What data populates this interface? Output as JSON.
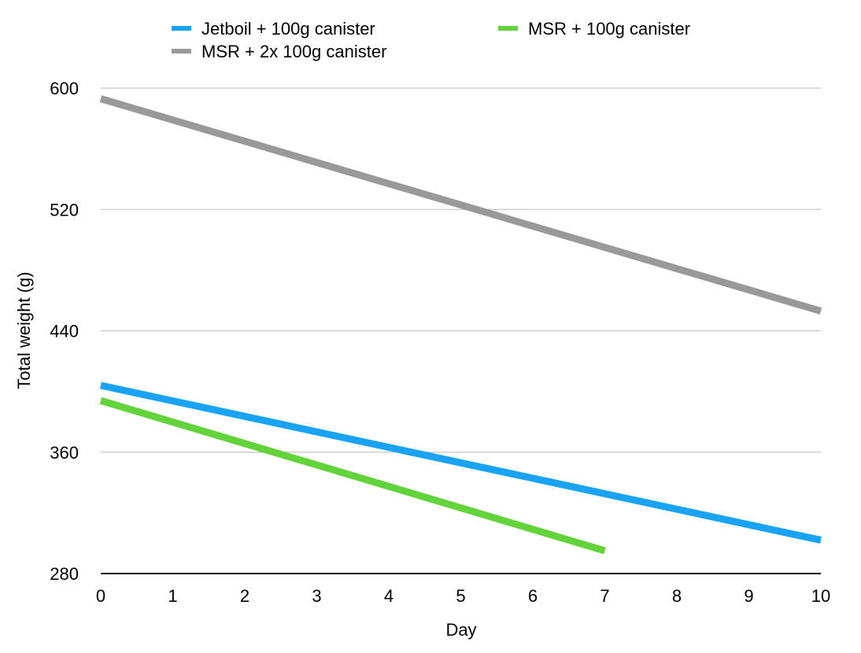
{
  "chart_data": {
    "type": "line",
    "title": "",
    "xlabel": "Day",
    "ylabel": "Total weight (g)",
    "xlim": [
      0,
      10
    ],
    "ylim": [
      280,
      600
    ],
    "x_ticks": [
      0,
      1,
      2,
      3,
      4,
      5,
      6,
      7,
      8,
      9,
      10
    ],
    "y_ticks": [
      280,
      360,
      440,
      520,
      600
    ],
    "grid": true,
    "legend_position": "top",
    "series": [
      {
        "name": "Jetboil + 100g canister",
        "color": "#1aa3f5",
        "points": [
          [
            0,
            404
          ],
          [
            10,
            302
          ]
        ]
      },
      {
        "name": "MSR + 100g canister",
        "color": "#63d33c",
        "points": [
          [
            0,
            394
          ],
          [
            7,
            295
          ]
        ]
      },
      {
        "name": "MSR + 2x 100g canister",
        "color": "#999999",
        "points": [
          [
            0,
            593
          ],
          [
            10,
            453
          ]
        ]
      }
    ]
  }
}
